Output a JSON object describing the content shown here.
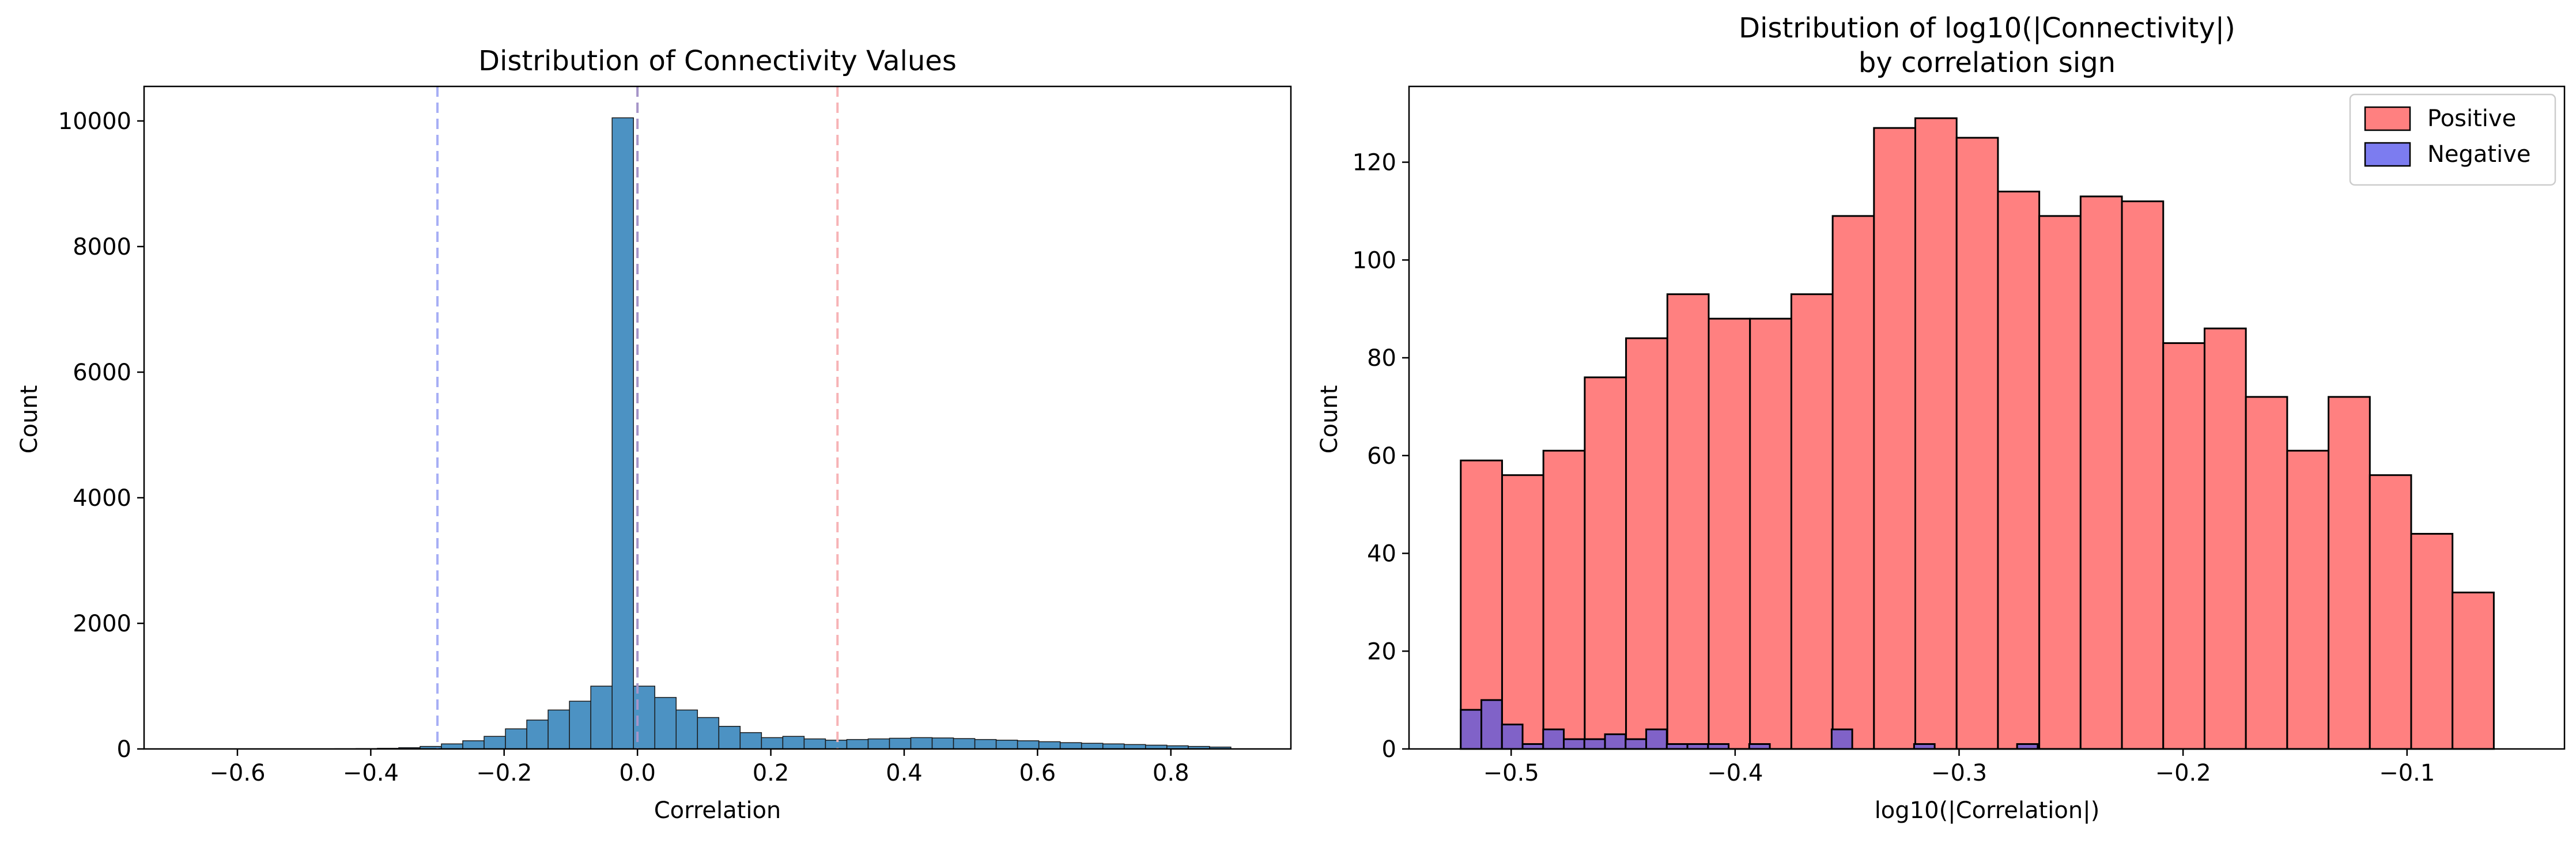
{
  "chart_data": [
    {
      "type": "bar",
      "title": "Distribution of Connectivity Values",
      "xlabel": "Correlation",
      "ylabel": "Count",
      "xlim": [
        -0.74,
        0.98
      ],
      "ylim": [
        0,
        10550
      ],
      "xticks": [
        -0.6,
        -0.4,
        -0.2,
        0.0,
        0.2,
        0.4,
        0.6,
        0.8
      ],
      "xtick_labels": [
        "−0.6",
        "−0.4",
        "−0.2",
        "0.0",
        "0.2",
        "0.4",
        "0.6",
        "0.8"
      ],
      "yticks": [
        0,
        2000,
        4000,
        6000,
        8000,
        10000
      ],
      "ytick_labels": [
        "0",
        "2000",
        "4000",
        "6000",
        "8000",
        "10000"
      ],
      "grid": false,
      "bar_color": "#4c92c3",
      "edge_color": "#1a1a1a",
      "bins": {
        "start": -0.71,
        "width": 0.032,
        "values": [
          1,
          0,
          0,
          1,
          0,
          1,
          2,
          2,
          3,
          5,
          10,
          20,
          40,
          80,
          130,
          200,
          320,
          460,
          620,
          760,
          1000,
          10050,
          1000,
          820,
          620,
          500,
          360,
          260,
          180,
          200,
          160,
          140,
          150,
          160,
          170,
          180,
          175,
          165,
          150,
          140,
          130,
          115,
          100,
          90,
          80,
          70,
          60,
          50,
          40,
          30
        ]
      },
      "reference_lines": [
        {
          "x": -0.3,
          "color": "#a7aef5"
        },
        {
          "x": 0.0,
          "color": "#a594c8"
        },
        {
          "x": 0.3,
          "color": "#f7b3b6"
        }
      ]
    },
    {
      "type": "bar",
      "title": "Distribution of log10(|Connectivity|)",
      "subtitle": "by correlation sign",
      "xlabel": "log10(|Correlation|)",
      "ylabel": "Count",
      "xlim": [
        -0.5456,
        -0.0297
      ],
      "ylim": [
        0,
        135.5
      ],
      "xticks": [
        -0.5,
        -0.4,
        -0.3,
        -0.2,
        -0.1
      ],
      "xtick_labels": [
        "−0.5",
        "−0.4",
        "−0.3",
        "−0.2",
        "−0.1"
      ],
      "yticks": [
        0,
        20,
        40,
        60,
        80,
        100,
        120
      ],
      "ytick_labels": [
        "0",
        "20",
        "40",
        "60",
        "80",
        "100",
        "120"
      ],
      "grid": false,
      "legend": "top-right",
      "bins": {
        "start": -0.5225,
        "width": 0.01845
      },
      "series": [
        {
          "name": "Positive",
          "color": "#ff8080",
          "edge_color": "#000000",
          "values": [
            59,
            56,
            61,
            76,
            84,
            93,
            88,
            88,
            93,
            109,
            127,
            129,
            125,
            114,
            109,
            113,
            112,
            83,
            86,
            72,
            61,
            72,
            56,
            44,
            32
          ]
        },
        {
          "name": "Negative",
          "color": "#8062c8",
          "edge_color": "#000000",
          "values": [
            8,
            10,
            5,
            1,
            4,
            2,
            2,
            3,
            2,
            4,
            1,
            1,
            1,
            0,
            1,
            0,
            0,
            0,
            4,
            0,
            0,
            0,
            1,
            0,
            0,
            0,
            0,
            1,
            0
          ]
        }
      ],
      "negative_bins": {
        "start": -0.5225,
        "width": 0.0092
      }
    }
  ]
}
